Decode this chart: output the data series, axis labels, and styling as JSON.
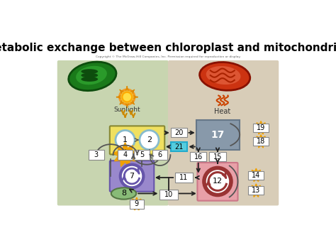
{
  "title": "Metabolic exchange between chloroplast and mitochondrion",
  "title_fontsize": 11,
  "title_fontweight": "bold",
  "copyright": "Copyright © The McGraw-Hill Companies, Inc. Permission required for reproduction or display.",
  "bg_left_color": "#c8d5b0",
  "bg_right_color": "#d8cdb8",
  "box_yellow": "#f0e060",
  "box_purple": "#9988cc",
  "box_blue_gray": "#8899aa",
  "box_pink": "#e8a0a8",
  "arrow_color": "#222222",
  "cyan_color": "#55ccdd",
  "sunburst_color": "#f0a000",
  "circle_blue_edge": "#88bbcc",
  "circle_purple_ring": "#6655aa",
  "circle_red_ring": "#993333",
  "oval_green_face": "#88bb77",
  "oval_green_edge": "#557744"
}
